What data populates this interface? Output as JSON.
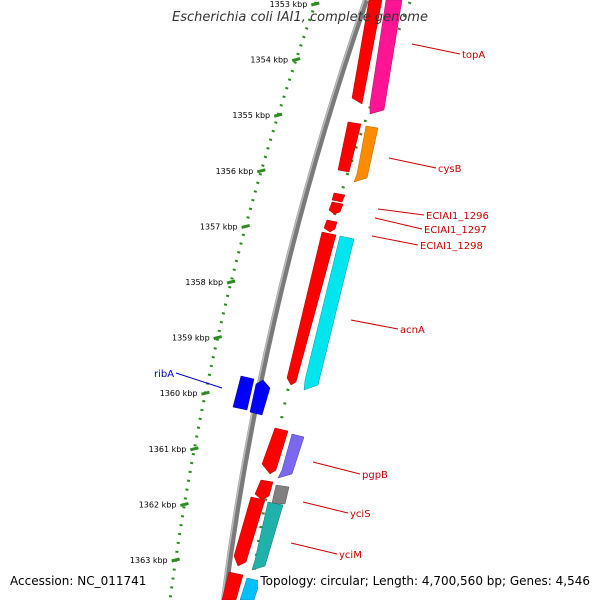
{
  "title": "Escherichia coli IAI1, complete genome",
  "footer": {
    "accession": "Accession: NC_011741",
    "summary": "Topology: circular; Length: 4,700,560 bp; Genes: 4,546"
  },
  "colors": {
    "backbone": "#808080",
    "tick": "#2e8b22",
    "strand": "#ff0000",
    "forward_label": "#cc0000",
    "reverse_label": "#0000cc"
  },
  "ticks": [
    "1353 kbp",
    "1354 kbp",
    "1355 kbp",
    "1356 kbp",
    "1357 kbp",
    "1358 kbp",
    "1359 kbp",
    "1360 kbp",
    "1361 kbp",
    "1362 kbp",
    "1363 kbp"
  ],
  "genes": [
    {
      "name": "topA",
      "color": "#ff1493"
    },
    {
      "name": "cysB",
      "color": "#ff8c00"
    },
    {
      "name": "ECIAI1_1296",
      "color": "#ff0000"
    },
    {
      "name": "ECIAI1_1297",
      "color": "#ff0000"
    },
    {
      "name": "ECIAI1_1298",
      "color": "#ff0000"
    },
    {
      "name": "acnA",
      "color": "#00e5ee"
    },
    {
      "name": "ribA",
      "color": "#0000ff"
    },
    {
      "name": "pgpB",
      "color": "#7b68ee"
    },
    {
      "name": "yciS",
      "color": "#808080"
    },
    {
      "name": "yciM",
      "color": "#20b2aa"
    }
  ]
}
